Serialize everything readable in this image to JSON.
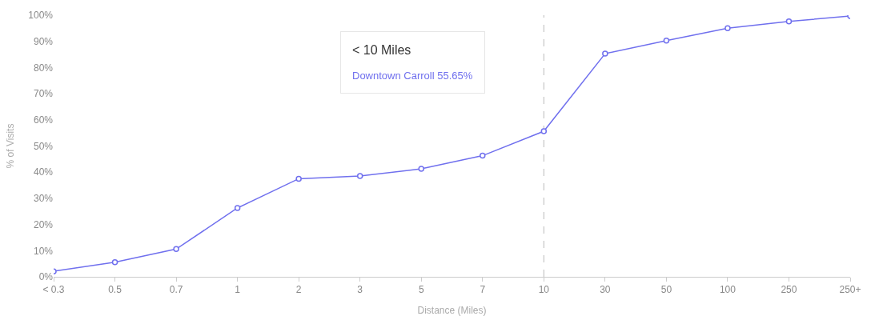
{
  "chart_data": {
    "type": "line",
    "xlabel": "Distance (Miles)",
    "ylabel": "% of Visits",
    "categories": [
      "< 0.3",
      "0.5",
      "0.7",
      "1",
      "2",
      "3",
      "5",
      "7",
      "10",
      "30",
      "50",
      "100",
      "250",
      "250+"
    ],
    "series": [
      {
        "color": "#7070ee",
        "values": [
          2.1,
          5.6,
          10.6,
          26.3,
          37.5,
          38.5,
          41.3,
          46.3,
          55.65,
          85.3,
          90.3,
          95.0,
          97.6,
          99.7
        ]
      }
    ],
    "ylim": [
      0,
      100
    ],
    "yticks": [
      {
        "value": 0,
        "label": "0%"
      },
      {
        "value": 10,
        "label": "10%"
      },
      {
        "value": 20,
        "label": "20%"
      },
      {
        "value": 30,
        "label": "30%"
      },
      {
        "value": 40,
        "label": "40%"
      },
      {
        "value": 50,
        "label": "50%"
      },
      {
        "value": 60,
        "label": "60%"
      },
      {
        "value": 70,
        "label": "70%"
      },
      {
        "value": 80,
        "label": "80%"
      },
      {
        "value": 90,
        "label": "90%"
      },
      {
        "value": 100,
        "label": "100%"
      }
    ],
    "ref_lines": [
      {
        "axis": "x",
        "value": "10",
        "color": "#bbbbbb",
        "line_style": "dashed"
      }
    ],
    "annotations": [
      "< 10 Miles",
      "Downtown Carroll 55.65%"
    ],
    "grid": false,
    "marker": "circle",
    "line_style": "solid"
  }
}
